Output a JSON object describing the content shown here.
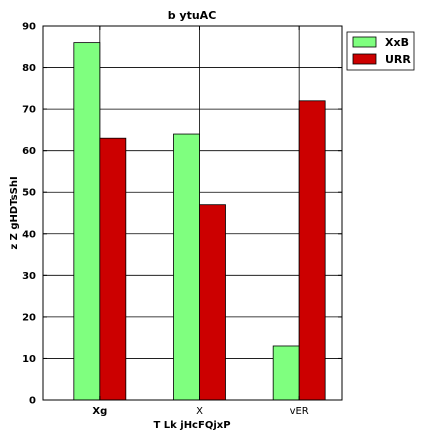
{
  "chart_data": {
    "type": "bar",
    "title": "b ytuAC",
    "xlabel": "T Lk jHcFQjxP",
    "ylabel": "z Z gHDTsShI",
    "categories": [
      "Xg",
      "X",
      "vER"
    ],
    "series": [
      {
        "name": "XxB",
        "values": [
          86,
          64,
          13
        ],
        "color": "#7fff7f"
      },
      {
        "name": "URR",
        "values": [
          63,
          47,
          72
        ],
        "color": "#cc0000"
      }
    ],
    "ylim": [
      0,
      90
    ],
    "yticks": [
      0,
      10,
      20,
      30,
      40,
      50,
      60,
      70,
      80,
      90
    ],
    "grid": true,
    "legend_position": "outside-top-right",
    "bold_categories": [
      "Xg"
    ]
  }
}
